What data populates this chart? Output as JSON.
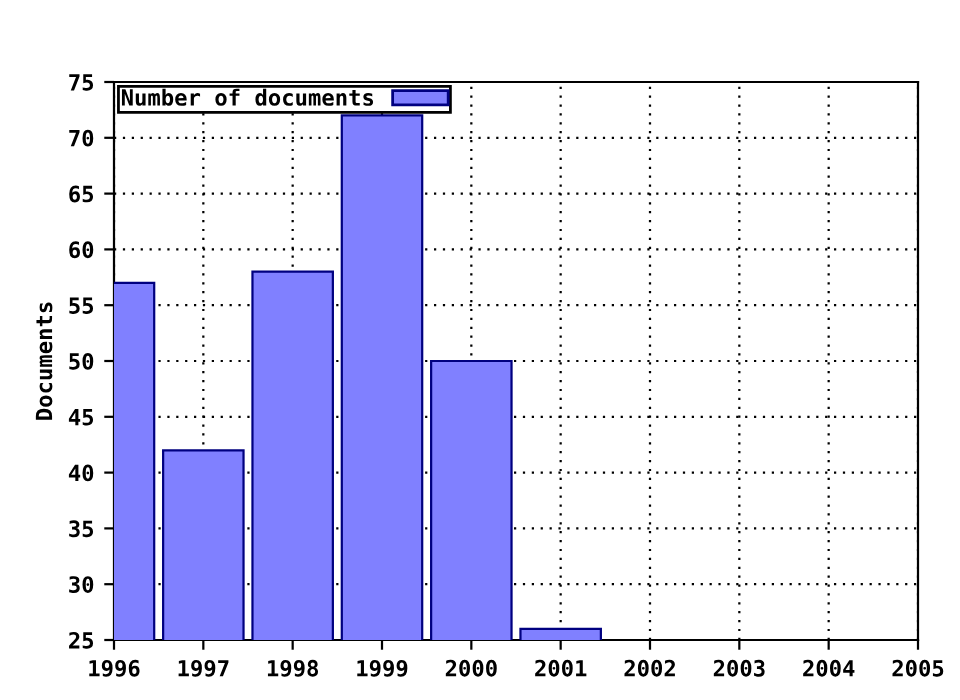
{
  "chart_data": {
    "type": "bar",
    "ylabel": "Documents",
    "x": [
      1996,
      1997,
      1998,
      1999,
      2000,
      2001
    ],
    "series": [
      {
        "name": "Number of documents",
        "color": "#8080ff",
        "values": [
          57,
          42,
          58,
          72,
          50,
          26
        ]
      }
    ],
    "xlim": [
      1996,
      2005
    ],
    "xticks": [
      1996,
      1997,
      1998,
      1999,
      2000,
      2001,
      2002,
      2003,
      2004,
      2005
    ],
    "ylim": [
      25,
      75
    ],
    "yticks": [
      25,
      30,
      35,
      40,
      45,
      50,
      55,
      60,
      65,
      70,
      75
    ],
    "grid": true,
    "legend": "top left"
  }
}
